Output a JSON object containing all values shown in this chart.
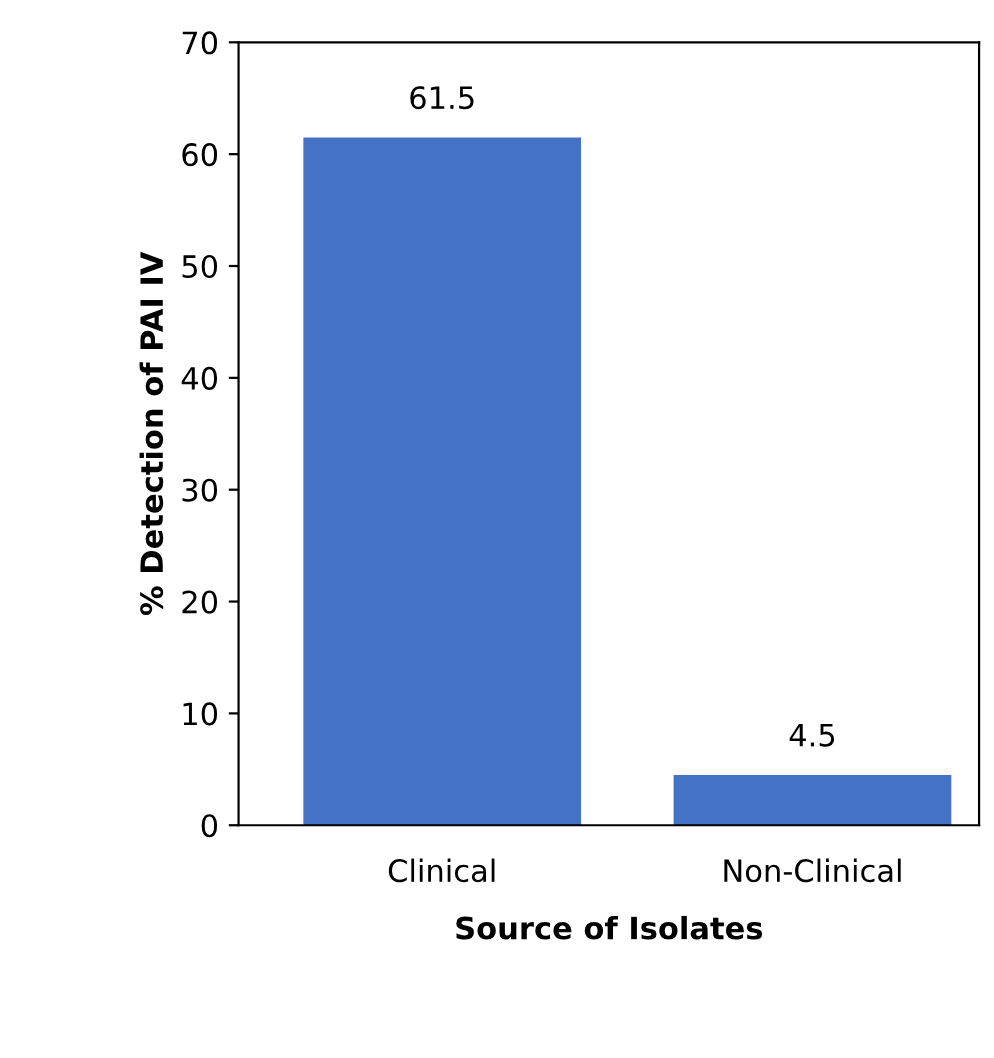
{
  "chart_data": {
    "type": "bar",
    "xlabel": "Source of Isolates",
    "ylabel": "% Detection of PAI IV",
    "categories": [
      "Clinical",
      "Non-Clinical"
    ],
    "values": [
      61.5,
      4.5
    ],
    "color": "#4472c4",
    "ylim": [
      0,
      70
    ],
    "yticks": [
      0,
      10,
      20,
      30,
      40,
      50,
      60,
      70
    ],
    "grid": false,
    "data_labels": true
  }
}
